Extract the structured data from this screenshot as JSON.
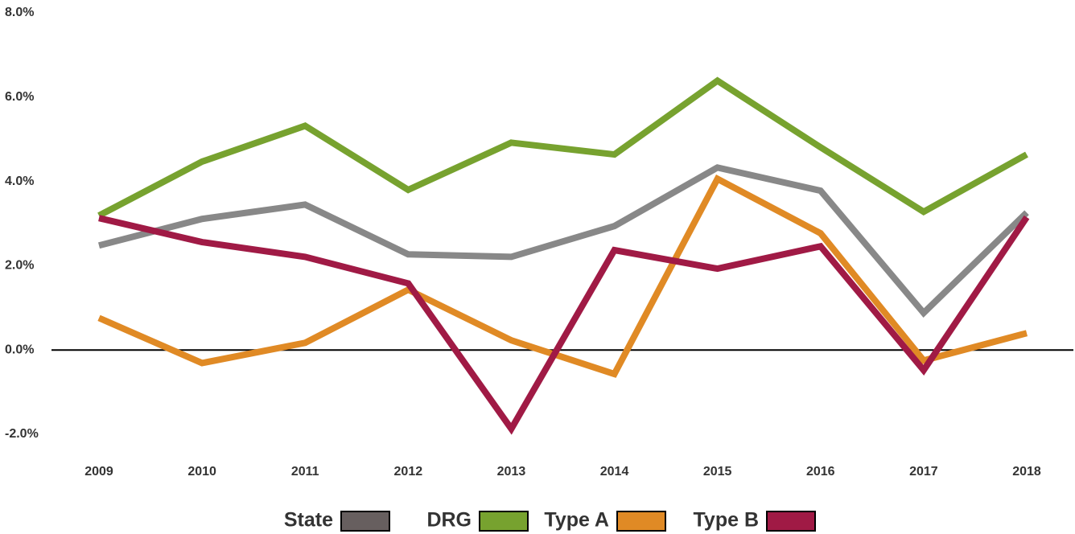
{
  "chart_data": {
    "type": "line",
    "categories": [
      "2009",
      "2010",
      "2011",
      "2012",
      "2013",
      "2014",
      "2015",
      "2016",
      "2017",
      "2018"
    ],
    "series": [
      {
        "name": "State",
        "color": "#888888",
        "swatch": "#675f5f",
        "values": [
          2.48,
          3.11,
          3.45,
          2.27,
          2.21,
          2.94,
          4.33,
          3.78,
          0.88,
          3.26
        ]
      },
      {
        "name": "DRG",
        "color": "#77a22f",
        "values": [
          3.19,
          4.47,
          5.32,
          3.8,
          4.92,
          4.64,
          6.39,
          4.81,
          3.28,
          4.64
        ]
      },
      {
        "name": "Type A",
        "color": "#e08a25",
        "values": [
          0.76,
          -0.31,
          0.17,
          1.43,
          0.23,
          -0.57,
          4.06,
          2.77,
          -0.25,
          0.4
        ]
      },
      {
        "name": "Type B",
        "color": "#a01a45",
        "values": [
          3.13,
          2.56,
          2.21,
          1.58,
          -1.87,
          2.37,
          1.93,
          2.46,
          -0.48,
          3.15
        ]
      }
    ],
    "ylim": [
      -2,
      8
    ],
    "yticks": [
      {
        "value": -2,
        "label": "-2.0%"
      },
      {
        "value": 0,
        "label": "0.0%"
      },
      {
        "value": 2,
        "label": "2.0%"
      },
      {
        "value": 4,
        "label": "4.0%"
      },
      {
        "value": 6,
        "label": "6.0%"
      },
      {
        "value": 8,
        "label": "8.0%"
      }
    ],
    "grid": false,
    "legend": "bottom"
  }
}
